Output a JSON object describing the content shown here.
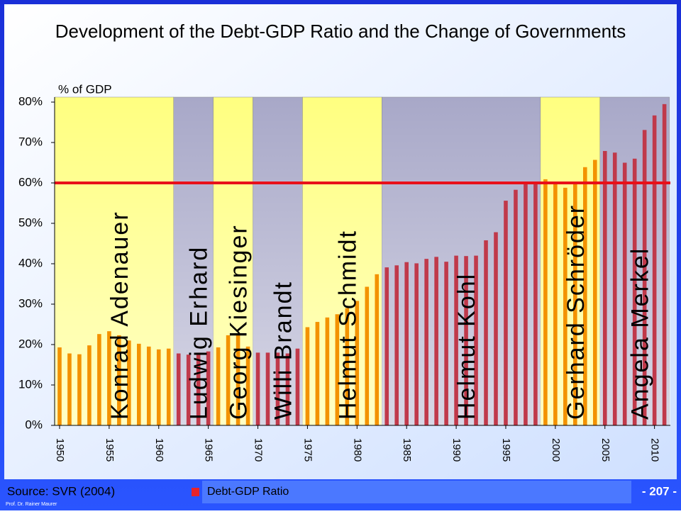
{
  "chart_data": {
    "type": "bar",
    "title": "Development of the Debt-GDP Ratio and the Change of Governments",
    "y_label": "% of GDP",
    "source": "Source: SVR (2004)",
    "page_number": "- 207 -",
    "author": "Prof. Dr. Rainer Maurer",
    "x": [
      1950,
      1951,
      1952,
      1953,
      1954,
      1955,
      1956,
      1957,
      1958,
      1959,
      1960,
      1961,
      1962,
      1963,
      1964,
      1965,
      1966,
      1967,
      1968,
      1969,
      1970,
      1971,
      1972,
      1973,
      1974,
      1975,
      1976,
      1977,
      1978,
      1979,
      1980,
      1981,
      1982,
      1983,
      1984,
      1985,
      1986,
      1987,
      1988,
      1989,
      1990,
      1991,
      1992,
      1993,
      1994,
      1995,
      1996,
      1997,
      1998,
      1999,
      2000,
      2001,
      2002,
      2003,
      2004,
      2005,
      2006,
      2007,
      2008,
      2009,
      2010,
      2011
    ],
    "series": [
      {
        "name": "Debt-GDP Ratio",
        "color": "#e8232b",
        "values": [
          19.3,
          17.8,
          17.6,
          19.8,
          22.6,
          23.3,
          22.3,
          21,
          20.2,
          19.5,
          18.8,
          19,
          17.8,
          17.5,
          18,
          18.3,
          19.3,
          22.3,
          22.3,
          19.5,
          18,
          18,
          18,
          17.8,
          19,
          24.3,
          25.6,
          26.7,
          27.5,
          29,
          30.8,
          34.3,
          37.4,
          39.1,
          39.6,
          40.4,
          40.1,
          41.2,
          41.7,
          40.5,
          42,
          41.9,
          42,
          45.8,
          47.8,
          55.6,
          58.3,
          59.8,
          60.3,
          60.9,
          60.2,
          58.8,
          60.3,
          63.9,
          65.7,
          67.9,
          67.5,
          65,
          66,
          73.1,
          76.7,
          79.5
        ]
      }
    ],
    "bands": [
      {
        "label": "Konrad Adenauer",
        "start": 1949.5,
        "end": 1961.5,
        "fill": "#ffff80",
        "bar_color": "#f39200"
      },
      {
        "label": "Ludwig Erhard",
        "start": 1961.5,
        "end": 1965.5,
        "fill": "#a8a8c8",
        "bar_color": "#c0394a"
      },
      {
        "label": "Georg Kiesinger",
        "start": 1965.5,
        "end": 1969.5,
        "fill": "#ffff80",
        "bar_color": "#f39200"
      },
      {
        "label": "Willi Brandt",
        "start": 1969.5,
        "end": 1974.5,
        "fill": "#a8a8c8",
        "bar_color": "#c0394a"
      },
      {
        "label": "Helmut Schmidt",
        "start": 1974.5,
        "end": 1982.5,
        "fill": "#ffff80",
        "bar_color": "#f39200"
      },
      {
        "label": "Helmut Kohl",
        "start": 1982.5,
        "end": 1998.5,
        "fill": "#a8a8c8",
        "bar_color": "#c0394a"
      },
      {
        "label": "Gerhard Schröder",
        "start": 1998.5,
        "end": 2004.5,
        "fill": "#ffff80",
        "bar_color": "#f39200"
      },
      {
        "label": "Angela Merkel",
        "start": 2004.5,
        "end": 2011.5,
        "fill": "#a8a8c8",
        "bar_color": "#c0394a"
      }
    ],
    "reference_line": {
      "value": 60,
      "color": "#e8101a"
    },
    "xlim": [
      1949.5,
      2011.6
    ],
    "xticks": [
      1950,
      1955,
      1960,
      1965,
      1970,
      1975,
      1980,
      1985,
      1990,
      1995,
      2000,
      2005,
      2010
    ],
    "ylim": [
      0,
      80
    ],
    "yticks": [
      {
        "value": 0,
        "label": "0%"
      },
      {
        "value": 10,
        "label": "10%"
      },
      {
        "value": 20,
        "label": "20%"
      },
      {
        "value": 30,
        "label": "30%"
      },
      {
        "value": 40,
        "label": "40%"
      },
      {
        "value": 50,
        "label": "50%"
      },
      {
        "value": 60,
        "label": "60%"
      },
      {
        "value": 70,
        "label": "70%"
      },
      {
        "value": 80,
        "label": "80%"
      }
    ]
  }
}
